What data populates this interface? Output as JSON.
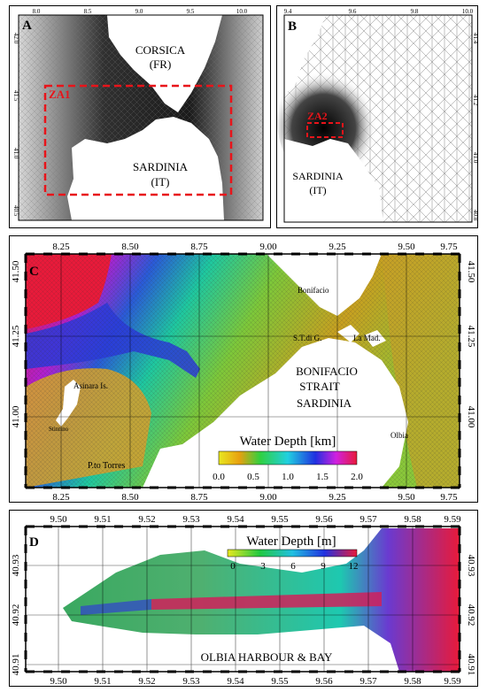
{
  "panels": {
    "a": {
      "letter": "A",
      "lon_ticks": [
        "8.0",
        "8.5",
        "9.0",
        "9.5",
        "10.0"
      ],
      "lat_ticks": [
        "42.0",
        "41.5",
        "41.0",
        "40.5"
      ],
      "labels": {
        "corsica": "CORSICA",
        "corsica_country": "(FR)",
        "sardinia": "SARDINIA",
        "sardinia_country": "(IT)",
        "zone": "ZA1"
      }
    },
    "b": {
      "letter": "B",
      "lon_ticks": [
        "9.4",
        "9.6",
        "9.8",
        "10.0"
      ],
      "lat_ticks": [
        "41.4",
        "41.2",
        "41.0",
        "40.8"
      ],
      "labels": {
        "sardinia": "SARDINIA",
        "sardinia_country": "(IT)",
        "zone": "ZA2"
      }
    },
    "c": {
      "letter": "C",
      "lon_ticks": [
        "8.25",
        "8.50",
        "8.75",
        "9.00",
        "9.25",
        "9.50",
        "9.75"
      ],
      "lat_ticks": [
        "41.50",
        "41.25",
        "41.00"
      ],
      "labels": {
        "bonifacio": "Bonifacio",
        "stm": "S.T.di G.",
        "lamaddalena": "La Mad.",
        "asinara": "Asinara Is.",
        "stintino": "Stintino",
        "porto_torres": "P.to Torres",
        "olbia": "Olbia",
        "strait1": "BONIFACIO",
        "strait2": "STRAIT",
        "sardinia": "SARDINIA"
      },
      "colorbar": {
        "title": "Water Depth [km]",
        "ticks": [
          "0.0",
          "0.5",
          "1.0",
          "1.5",
          "2.0"
        ]
      }
    },
    "d": {
      "letter": "D",
      "lon_ticks": [
        "9.50",
        "9.51",
        "9.52",
        "9.53",
        "9.54",
        "9.55",
        "9.56",
        "9.57",
        "9.58",
        "9.59"
      ],
      "lat_ticks": [
        "40.93",
        "40.92",
        "40.91"
      ],
      "labels": {
        "harbour": "OLBIA HARBOUR & BAY"
      },
      "colorbar": {
        "title": "Water Depth [m]",
        "ticks": [
          "0",
          "3",
          "6",
          "9",
          "12"
        ]
      }
    }
  },
  "colors": {
    "zone_box": "#e8141a",
    "land": "#ffffff"
  }
}
